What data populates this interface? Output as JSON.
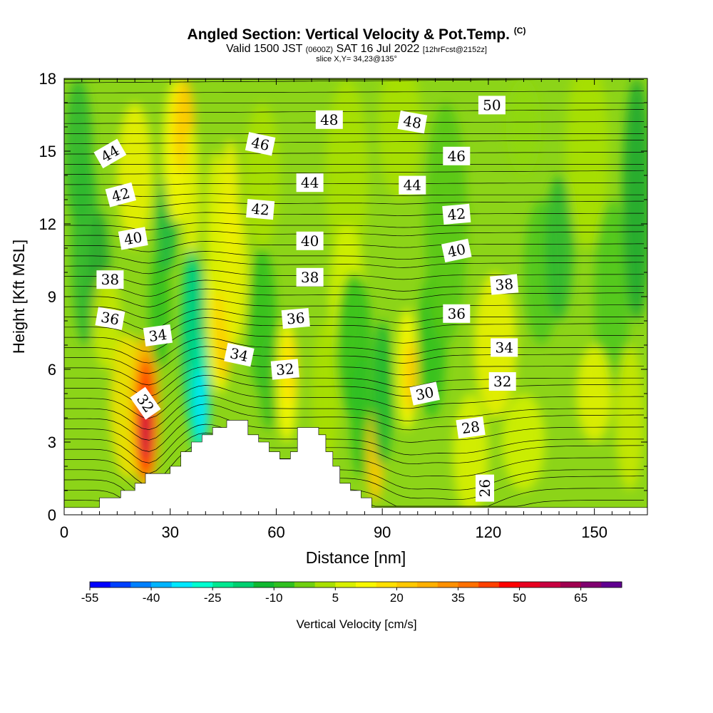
{
  "header": {
    "title": "Angled Section: Vertical Velocity & Pot.Temp.",
    "title_tag": "(C)",
    "valid_prefix": "Valid 1500 JST",
    "valid_utc": "(0600Z)",
    "valid_date": "SAT 16 Jul 2022",
    "forecast": "[12hrFcst@2152z]",
    "slice": "slice X,Y= 34,23@135°"
  },
  "chart_data": {
    "type": "heatmap",
    "title": "Angled Section: Vertical Velocity & Pot.Temp.",
    "xlabel": "Distance [nm]",
    "ylabel": "Height [Kft MSL]",
    "xlim": [
      0,
      165
    ],
    "ylim": [
      0,
      18
    ],
    "x_ticks": [
      0,
      30,
      60,
      90,
      120,
      150
    ],
    "y_ticks": [
      0,
      3,
      6,
      9,
      12,
      15,
      18
    ],
    "colorbar": {
      "label": "Vertical Velocity [cm/s]",
      "min": -55,
      "max": 75,
      "step": 5,
      "tick_labels": [
        "-55",
        "-40",
        "-25",
        "-10",
        "5",
        "20",
        "35",
        "50",
        "65"
      ],
      "colors": [
        "#0000ff",
        "#0040ff",
        "#0080ff",
        "#00b4ff",
        "#00e8ff",
        "#00ffd0",
        "#00e890",
        "#00d070",
        "#10b830",
        "#30c020",
        "#70d010",
        "#a8e000",
        "#d8f000",
        "#f8f800",
        "#ffe000",
        "#ffc800",
        "#ffb000",
        "#ff9000",
        "#ff7000",
        "#ff4000",
        "#ff0000",
        "#e80020",
        "#c80040",
        "#a00050",
        "#800070",
        "#600090"
      ]
    },
    "terrain": [
      [
        0,
        0.3
      ],
      [
        10,
        0.3
      ],
      [
        10,
        0.7
      ],
      [
        16,
        0.7
      ],
      [
        16,
        1
      ],
      [
        20,
        1
      ],
      [
        20,
        1.3
      ],
      [
        23,
        1.3
      ],
      [
        23,
        1.7
      ],
      [
        30,
        1.7
      ],
      [
        30,
        2
      ],
      [
        33,
        2
      ],
      [
        33,
        2.6
      ],
      [
        36,
        2.6
      ],
      [
        36,
        3
      ],
      [
        39,
        3
      ],
      [
        39,
        3.3
      ],
      [
        42,
        3.3
      ],
      [
        42,
        3.6
      ],
      [
        46,
        3.6
      ],
      [
        46,
        3.9
      ],
      [
        52,
        3.9
      ],
      [
        52,
        3.3
      ],
      [
        55,
        3.3
      ],
      [
        55,
        3
      ],
      [
        58,
        3
      ],
      [
        58,
        2.6
      ],
      [
        61,
        2.6
      ],
      [
        61,
        2.3
      ],
      [
        64,
        2.3
      ],
      [
        64,
        2.6
      ],
      [
        66,
        2.6
      ],
      [
        66,
        3.6
      ],
      [
        72,
        3.6
      ],
      [
        72,
        3.3
      ],
      [
        74,
        3.3
      ],
      [
        74,
        2.6
      ],
      [
        76,
        2.6
      ],
      [
        76,
        2
      ],
      [
        78,
        2
      ],
      [
        78,
        1.3
      ],
      [
        81,
        1.3
      ],
      [
        81,
        1
      ],
      [
        84,
        1
      ],
      [
        84,
        0.7
      ],
      [
        87,
        0.7
      ],
      [
        87,
        0.3
      ],
      [
        165,
        0.3
      ]
    ],
    "contour_labels": [
      {
        "text": "44",
        "x": 13,
        "y": 14.9,
        "angle": -30
      },
      {
        "text": "42",
        "x": 16,
        "y": 13.2,
        "angle": -15
      },
      {
        "text": "40",
        "x": 19.5,
        "y": 11.4,
        "angle": -10
      },
      {
        "text": "38",
        "x": 13,
        "y": 9.7,
        "angle": 0
      },
      {
        "text": "36",
        "x": 13,
        "y": 8.1,
        "angle": 10
      },
      {
        "text": "34",
        "x": 26.5,
        "y": 7.4,
        "angle": -8
      },
      {
        "text": "32",
        "x": 23,
        "y": 4.6,
        "angle": 55
      },
      {
        "text": "46",
        "x": 55.5,
        "y": 15.3,
        "angle": 12
      },
      {
        "text": "42",
        "x": 55.5,
        "y": 12.6,
        "angle": 5
      },
      {
        "text": "34",
        "x": 49.5,
        "y": 6.6,
        "angle": 12
      },
      {
        "text": "32",
        "x": 62.5,
        "y": 6,
        "angle": -5
      },
      {
        "text": "36",
        "x": 65.5,
        "y": 8.1,
        "angle": -5
      },
      {
        "text": "38",
        "x": 69.5,
        "y": 9.8,
        "angle": 0
      },
      {
        "text": "40",
        "x": 69.5,
        "y": 11.3,
        "angle": 0
      },
      {
        "text": "44",
        "x": 69.5,
        "y": 13.7,
        "angle": 0
      },
      {
        "text": "48",
        "x": 75,
        "y": 16.3,
        "angle": 0
      },
      {
        "text": "48",
        "x": 98.5,
        "y": 16.2,
        "angle": 10
      },
      {
        "text": "44",
        "x": 98.5,
        "y": 13.6,
        "angle": 0
      },
      {
        "text": "30",
        "x": 102,
        "y": 5,
        "angle": -12
      },
      {
        "text": "46",
        "x": 111,
        "y": 14.8,
        "angle": 0
      },
      {
        "text": "42",
        "x": 111,
        "y": 12.4,
        "angle": -5
      },
      {
        "text": "40",
        "x": 111,
        "y": 10.9,
        "angle": -12
      },
      {
        "text": "36",
        "x": 111,
        "y": 8.3,
        "angle": 0
      },
      {
        "text": "28",
        "x": 115,
        "y": 3.6,
        "angle": -8
      },
      {
        "text": "50",
        "x": 121,
        "y": 16.9,
        "angle": 0
      },
      {
        "text": "38",
        "x": 124.5,
        "y": 9.5,
        "angle": -5
      },
      {
        "text": "34",
        "x": 124.5,
        "y": 6.9,
        "angle": 0
      },
      {
        "text": "32",
        "x": 124,
        "y": 5.5,
        "angle": 0
      },
      {
        "text": "26",
        "x": 119,
        "y": 1.1,
        "angle": -90
      }
    ]
  },
  "colors": {
    "background": "#ffffff",
    "field_base": "#8cd418",
    "contour": "#000000",
    "terrain": "#ffffff"
  }
}
